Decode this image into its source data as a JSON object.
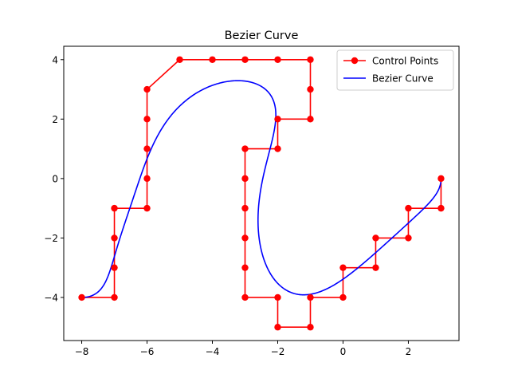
{
  "chart_data": {
    "type": "line",
    "title": "Bezier Curve",
    "xlabel": "",
    "ylabel": "",
    "xlim": [
      -8.55,
      3.55
    ],
    "ylim": [
      -5.45,
      4.45
    ],
    "xticks": [
      -8,
      -6,
      -4,
      -2,
      0,
      2
    ],
    "yticks": [
      -4,
      -2,
      0,
      2,
      4
    ],
    "xtick_labels": [
      "−8",
      "−6",
      "−4",
      "−2",
      "0",
      "2"
    ],
    "ytick_labels": [
      "−4",
      "−2",
      "0",
      "2",
      "4"
    ],
    "grid": false,
    "legend_position": "upper right",
    "series": [
      {
        "name": "Control Points",
        "color": "#ff0000",
        "marker": "circle",
        "x": [
          -8,
          -7,
          -7,
          -7,
          -7,
          -6,
          -6,
          -6,
          -6,
          -6,
          -5,
          -4,
          -3,
          -2,
          -1,
          -1,
          -1,
          -2,
          -2,
          -3,
          -3,
          -3,
          -3,
          -3,
          -3,
          -2,
          -2,
          -1,
          -1,
          0,
          0,
          1,
          1,
          2,
          2,
          3,
          3
        ],
        "y": [
          -4,
          -4,
          -3,
          -2,
          -1,
          -1,
          0,
          1,
          2,
          3,
          4,
          4,
          4,
          4,
          4,
          3,
          2,
          2,
          1,
          1,
          0,
          -1,
          -2,
          -3,
          -4,
          -4,
          -5,
          -5,
          -4,
          -4,
          -3,
          -3,
          -2,
          -2,
          -1,
          -1,
          0
        ]
      },
      {
        "name": "Bezier Curve",
        "color": "#0000ff",
        "marker": "none",
        "derived_from": "Control Points"
      }
    ]
  }
}
